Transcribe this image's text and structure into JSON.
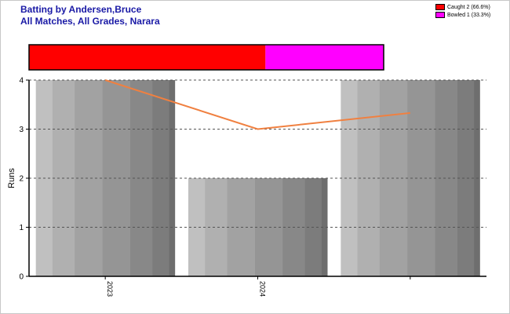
{
  "chart_data": {
    "type": "bar",
    "title": "Batting by Andersen,Bruce",
    "subtitle": "All Matches, All Grades, Narara",
    "ylabel": "Runs",
    "xlabel": "",
    "ylim": [
      0,
      4
    ],
    "yticks": [
      "0",
      "1",
      "2",
      "3",
      "4"
    ],
    "grid": true,
    "categories": [
      "2023",
      "2024",
      ""
    ],
    "values": [
      4,
      2,
      4
    ],
    "line": {
      "x_index": [
        0,
        1,
        2
      ],
      "values": [
        4,
        3,
        3.33
      ],
      "color": "#f08040"
    },
    "dismissals": {
      "legend_position": "top-right",
      "items": [
        {
          "label": "Caught 2 (66.6%)",
          "count": 2,
          "fraction": 0.666,
          "color": "#ff0000"
        },
        {
          "label": "Bowled 1 (33.3%)",
          "count": 1,
          "fraction": 0.333,
          "color": "#ff00ff"
        }
      ]
    }
  }
}
